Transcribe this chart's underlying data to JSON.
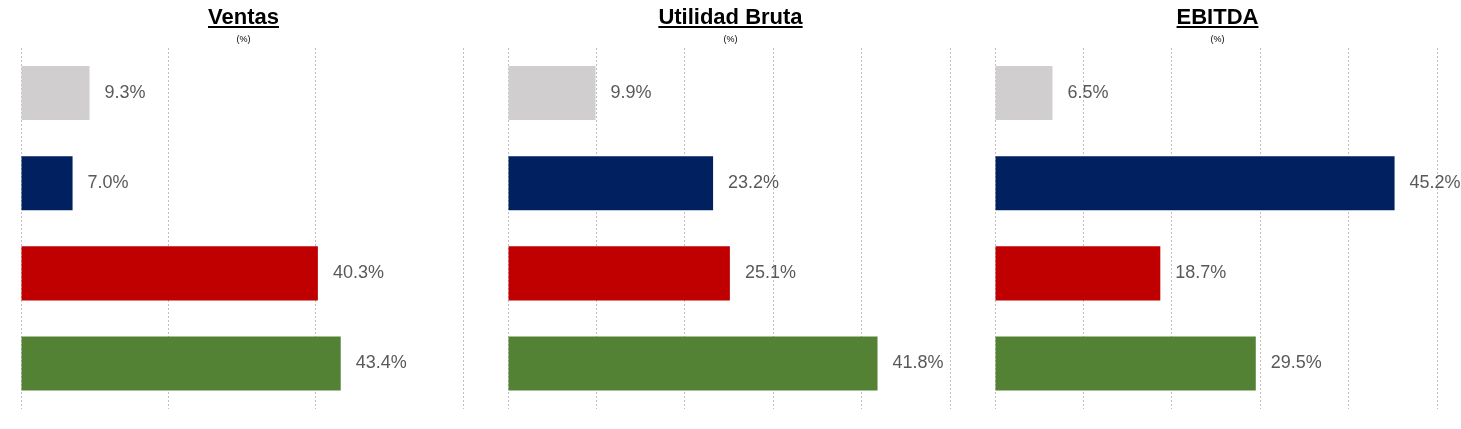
{
  "chart_data": [
    {
      "type": "bar",
      "orientation": "horizontal",
      "title": "Ventas",
      "subtitle": "(%)",
      "categories": [
        null,
        null,
        null,
        null
      ],
      "values": [
        9.3,
        7.0,
        40.3,
        43.4
      ],
      "colors": [
        "#d0cece",
        "#002060",
        "#c00000",
        "#548235"
      ],
      "value_labels": [
        "9.3%",
        "7.0%",
        "40.3%",
        "43.4%"
      ],
      "xlim": [
        0,
        60
      ],
      "xticks": [
        {
          "value": 0,
          "label": null
        },
        {
          "value": 20,
          "label": null
        },
        {
          "value": 40,
          "label": null
        },
        {
          "value": 60,
          "label": null
        }
      ],
      "grid": "x",
      "legend": false
    },
    {
      "type": "bar",
      "orientation": "horizontal",
      "title": "Utilidad Bruta",
      "subtitle": "(%)",
      "categories": [
        null,
        null,
        null,
        null
      ],
      "values": [
        9.9,
        23.2,
        25.1,
        41.8
      ],
      "colors": [
        "#d0cece",
        "#002060",
        "#c00000",
        "#548235"
      ],
      "value_labels": [
        "9.9%",
        "23.2%",
        "25.1%",
        "41.8%"
      ],
      "xlim": [
        0,
        50
      ],
      "xticks": [
        {
          "value": 0,
          "label": null
        },
        {
          "value": 10,
          "label": null
        },
        {
          "value": 20,
          "label": null
        },
        {
          "value": 30,
          "label": null
        },
        {
          "value": 40,
          "label": null
        },
        {
          "value": 50,
          "label": null
        }
      ],
      "grid": "x",
      "legend": false
    },
    {
      "type": "bar",
      "orientation": "horizontal",
      "title": "EBITDA",
      "subtitle": "(%)",
      "categories": [
        null,
        null,
        null,
        null
      ],
      "values": [
        6.5,
        45.2,
        18.7,
        29.5
      ],
      "colors": [
        "#d0cece",
        "#002060",
        "#c00000",
        "#548235"
      ],
      "value_labels": [
        "6.5%",
        "45.2%",
        "18.7%",
        "29.5%"
      ],
      "xlim": [
        0,
        50
      ],
      "xticks": [
        {
          "value": 0,
          "label": null
        },
        {
          "value": 10,
          "label": null
        },
        {
          "value": 20,
          "label": null
        },
        {
          "value": 30,
          "label": null
        },
        {
          "value": 40,
          "label": null
        },
        {
          "value": 50,
          "label": null
        }
      ],
      "grid": "x",
      "legend": false
    }
  ]
}
